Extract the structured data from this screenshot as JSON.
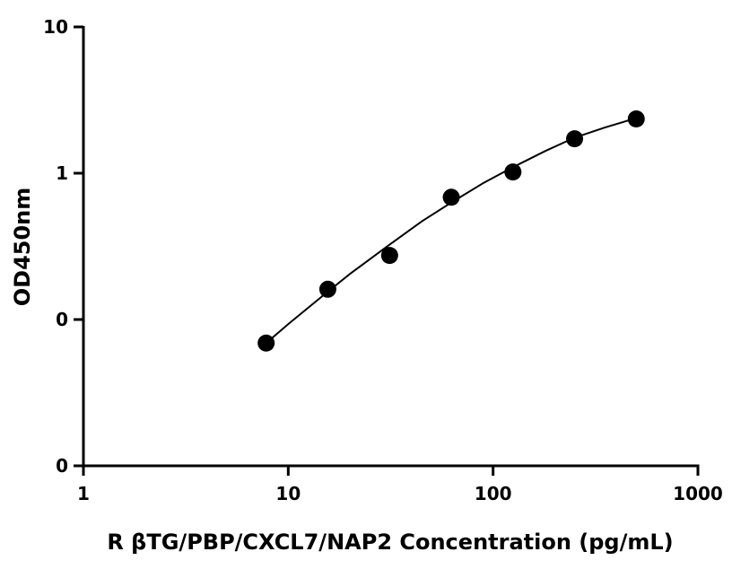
{
  "chart_data": {
    "type": "scatter",
    "title": "",
    "xlabel": "R βTG/PBP/CXCL7/NAP2 Concentration (pg/mL)",
    "ylabel": "OD450nm",
    "x_scale": "log",
    "y_scale": "log",
    "xlim": [
      1,
      1000
    ],
    "ylim": [
      0.01,
      10
    ],
    "x_ticks": [
      1,
      10,
      100,
      1000
    ],
    "x_tick_labels": [
      "1",
      "10",
      "100",
      "1000"
    ],
    "y_ticks": [
      0.01,
      0.1,
      1,
      10
    ],
    "y_tick_labels": [
      "0",
      "0",
      "1",
      "10"
    ],
    "grid": false,
    "legend": false,
    "series": [
      {
        "type": "scatter",
        "x": [
          7.8,
          15.6,
          31.25,
          62.5,
          125,
          250,
          500
        ],
        "y": [
          0.069,
          0.161,
          0.274,
          0.685,
          1.02,
          1.72,
          2.35
        ]
      },
      {
        "type": "line",
        "fit": "smooth curve",
        "x": [
          7.8,
          10,
          15.6,
          20,
          31.25,
          45,
          62.5,
          90,
          125,
          180,
          250,
          350,
          500
        ],
        "y": [
          0.069,
          0.093,
          0.155,
          0.205,
          0.325,
          0.47,
          0.63,
          0.86,
          1.1,
          1.42,
          1.75,
          2.05,
          2.38
        ]
      }
    ],
    "colors": {
      "marker": "#000000",
      "line": "#000000",
      "axis": "#000000"
    }
  }
}
